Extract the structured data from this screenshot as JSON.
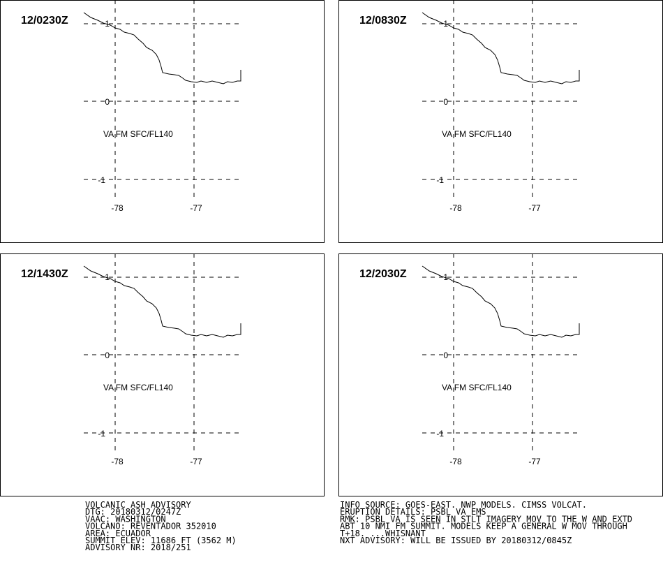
{
  "panels": [
    {
      "time": "12/0230Z",
      "annotation": "VA FM SFC/FL140",
      "y_labels": [
        "1",
        "0",
        "-1"
      ],
      "x_labels": [
        "-78",
        "-77"
      ]
    },
    {
      "time": "12/0830Z",
      "annotation": "VA FM SFC/FL140",
      "y_labels": [
        "1",
        "0",
        "-1"
      ],
      "x_labels": [
        "-78",
        "-77"
      ]
    },
    {
      "time": "12/1430Z",
      "annotation": "VA FM SFC/FL140",
      "y_labels": [
        "1",
        "0",
        "-1"
      ],
      "x_labels": [
        "-78",
        "-77"
      ]
    },
    {
      "time": "12/2030Z",
      "annotation": "VA FM SFC/FL140",
      "y_labels": [
        "1",
        "0",
        "-1"
      ],
      "x_labels": [
        "-78",
        "-77"
      ]
    }
  ],
  "advisory": {
    "left": [
      "VOLCANIC ASH ADVISORY",
      "DTG: 20180312/0247Z",
      "VAAC: WASHINGTON",
      "VOLCANO: REVENTADOR 352010",
      "AREA: ECUADOR",
      "SUMMIT ELEV: 11686 FT (3562 M)",
      "ADVISORY NR: 2018/251"
    ],
    "right": [
      "INFO SOURCE: GOES-EAST. NWP MODELS. CIMSS VOLCAT.",
      "ERUPTION DETAILS: PSBL VA EMS",
      "RMK: PSBL VA IS SEEN IN STLT IMAGERY MOV TO THE W AND EXTD",
      "ABT 10 NMI FM SUMMIT. MODELS KEEP A GENERAL W MOV THROUGH",
      "T+18. ...WHISNANT",
      "NXT ADVISORY: WILL BE ISSUED BY 20180312/0845Z"
    ]
  }
}
